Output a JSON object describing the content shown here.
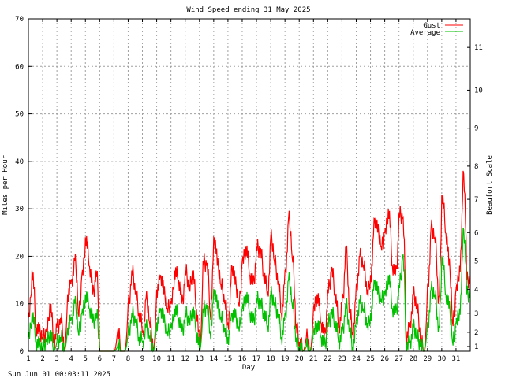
{
  "chart_data": {
    "type": "line",
    "title": "Wind Speed ending 31 May 2025",
    "xlabel": "Day",
    "ylabel": "Miles per Hour",
    "y2label": "Beaufort Scale",
    "xlim": [
      1,
      32
    ],
    "ylim": [
      0,
      70
    ],
    "grid": true,
    "legend_position": "top-right",
    "x_ticks": [
      "1",
      "2",
      "3",
      "4",
      "5",
      "6",
      "7",
      "8",
      "9",
      "10",
      "11",
      "12",
      "13",
      "14",
      "15",
      "16",
      "17",
      "18",
      "19",
      "20",
      "21",
      "22",
      "23",
      "24",
      "25",
      "26",
      "27",
      "28",
      "29",
      "30",
      "31"
    ],
    "y_ticks": [
      0,
      10,
      20,
      30,
      40,
      50,
      60,
      70
    ],
    "beaufort_ticks": [
      {
        "label": "1",
        "mph": 1
      },
      {
        "label": "2",
        "mph": 4
      },
      {
        "label": "3",
        "mph": 8
      },
      {
        "label": "4",
        "mph": 13
      },
      {
        "label": "5",
        "mph": 19
      },
      {
        "label": "6",
        "mph": 25
      },
      {
        "label": "7",
        "mph": 32
      },
      {
        "label": "8",
        "mph": 39
      },
      {
        "label": "9",
        "mph": 47
      },
      {
        "label": "10",
        "mph": 55
      },
      {
        "label": "11",
        "mph": 64
      }
    ],
    "samples_per_day": 4,
    "series": [
      {
        "name": "Gust",
        "color": "#ff0000",
        "values": [
          7,
          17,
          5,
          4,
          3,
          4,
          10,
          2,
          5,
          7,
          0,
          12,
          15,
          19,
          8,
          16,
          24,
          18,
          12,
          17,
          0,
          0,
          0,
          0,
          0,
          4,
          0,
          0,
          10,
          17,
          12,
          8,
          4,
          11,
          6,
          0,
          13,
          16,
          12,
          9,
          10,
          17,
          15,
          10,
          17,
          13,
          17,
          9,
          0,
          19,
          18,
          8,
          24,
          18,
          14,
          10,
          6,
          18,
          14,
          10,
          19,
          22,
          16,
          14,
          22,
          21,
          16,
          12,
          24,
          19,
          14,
          8,
          17,
          28,
          20,
          5,
          2,
          0,
          3,
          0,
          9,
          12,
          6,
          3,
          13,
          17,
          12,
          5,
          10,
          22,
          8,
          4,
          14,
          20,
          18,
          12,
          16,
          28,
          25,
          22,
          25,
          30,
          18,
          16,
          29,
          28,
          3,
          6,
          12,
          9,
          2,
          0,
          14,
          26,
          24,
          10,
          33,
          25,
          18,
          6,
          13,
          18,
          38,
          15
        ]
      },
      {
        "name": "Average",
        "color": "#00c000",
        "values": [
          3,
          8,
          2,
          1,
          1,
          2,
          4,
          0,
          2,
          3,
          0,
          5,
          7,
          10,
          4,
          8,
          12,
          9,
          6,
          8,
          0,
          0,
          0,
          0,
          0,
          1,
          0,
          0,
          4,
          8,
          6,
          3,
          2,
          5,
          3,
          0,
          6,
          9,
          6,
          4,
          5,
          9,
          7,
          4,
          8,
          6,
          9,
          4,
          0,
          9,
          9,
          4,
          13,
          9,
          7,
          4,
          3,
          8,
          7,
          5,
          9,
          12,
          8,
          6,
          11,
          10,
          8,
          5,
          12,
          10,
          7,
          3,
          8,
          15,
          10,
          2,
          1,
          0,
          1,
          0,
          4,
          6,
          3,
          1,
          6,
          8,
          6,
          2,
          4,
          10,
          4,
          1,
          7,
          10,
          9,
          5,
          8,
          15,
          12,
          11,
          12,
          16,
          9,
          8,
          14,
          20,
          1,
          2,
          5,
          3,
          1,
          0,
          6,
          13,
          12,
          4,
          20,
          12,
          9,
          2,
          6,
          9,
          26,
          12
        ]
      }
    ]
  },
  "footer": {
    "timestamp": "Sun Jun 01 00:03:11 2025"
  }
}
